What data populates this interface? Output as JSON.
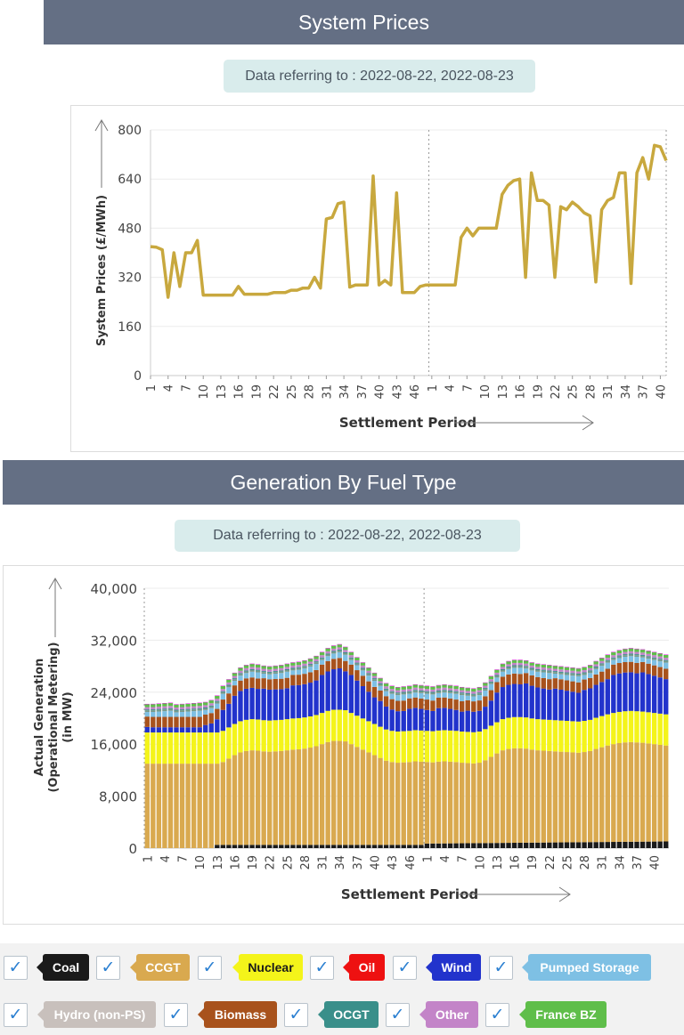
{
  "prices_section": {
    "title": "System Prices",
    "date_label": "Data referring to : 2022-08-22, 2022-08-23"
  },
  "generation_section": {
    "title": "Generation By Fuel Type",
    "date_label": "Data referring to : 2022-08-22, 2022-08-23"
  },
  "chart_data": [
    {
      "type": "line",
      "ylabel": "System Prices (£/MWh)",
      "xlabel": "Settlement Period",
      "ylim": [
        0,
        800
      ],
      "yticks": [
        0,
        160,
        320,
        480,
        640,
        800
      ],
      "ytick_labels": [
        "0",
        "160",
        "320",
        "480",
        "640",
        "800"
      ],
      "x_tick_labels": [
        "1",
        "4",
        "7",
        "10",
        "13",
        "16",
        "19",
        "22",
        "25",
        "28",
        "31",
        "34",
        "37",
        "40",
        "43",
        "46",
        "1",
        "4",
        "7",
        "10",
        "13",
        "16",
        "19",
        "22",
        "25",
        "28",
        "31",
        "34",
        "37",
        "40"
      ],
      "day_split_after_period": 48,
      "color": "#c8a83e",
      "series": [
        {
          "values": [
            420,
            418,
            410,
            255,
            400,
            290,
            400,
            400,
            440,
            262,
            262,
            262,
            262,
            262,
            262,
            290,
            265,
            265,
            265,
            265,
            265,
            270,
            270,
            270,
            278,
            278,
            285,
            285,
            320,
            285,
            510,
            515,
            560,
            565,
            288,
            295,
            295,
            295,
            650,
            295,
            310,
            295,
            595,
            270,
            270,
            270,
            290,
            295,
            295,
            295,
            295,
            295,
            295,
            450,
            480,
            455,
            480,
            480,
            480,
            480,
            590,
            620,
            635,
            640,
            320,
            660,
            570,
            570,
            555,
            320,
            550,
            540,
            565,
            550,
            530,
            520,
            305,
            540,
            570,
            580,
            660,
            660,
            300,
            660,
            710,
            640,
            750,
            745,
            700
          ]
        }
      ]
    },
    {
      "type": "bar",
      "stacked": true,
      "ylabel": "Actual Generation (Operational Metering) (in MW)",
      "xlabel": "Settlement Period",
      "ylim": [
        0,
        40000
      ],
      "yticks": [
        0,
        8000,
        16000,
        24000,
        32000,
        40000
      ],
      "ytick_labels": [
        "0",
        "8,000",
        "16,000",
        "24,000",
        "32,000",
        "40,000"
      ],
      "x_tick_labels": [
        "1",
        "4",
        "7",
        "10",
        "13",
        "16",
        "19",
        "22",
        "25",
        "28",
        "31",
        "34",
        "37",
        "40",
        "43",
        "46",
        "1",
        "4",
        "7",
        "10",
        "13",
        "16",
        "19",
        "22",
        "25",
        "28",
        "31",
        "34",
        "37",
        "40"
      ],
      "day_split_after_period": 48,
      "series_order": [
        "Coal",
        "CCGT",
        "Nuclear",
        "Wind",
        "Biomass",
        "Pumped Storage",
        "Hydro (non-PS)",
        "OCGT",
        "Other",
        "France BZ",
        "Oil"
      ]
    }
  ],
  "legend": {
    "check_mark": "✓",
    "items": [
      {
        "name": "Coal",
        "bg": "#1a1a1a",
        "fg": "#ffffff"
      },
      {
        "name": "CCGT",
        "bg": "#d9a94f",
        "fg": "#ffffff"
      },
      {
        "name": "Nuclear",
        "bg": "#f4f41a",
        "fg": "#1a1a1a"
      },
      {
        "name": "Oil",
        "bg": "#ee1111",
        "fg": "#ffffff"
      },
      {
        "name": "Wind",
        "bg": "#2233cc",
        "fg": "#ffffff"
      },
      {
        "name": "Pumped Storage",
        "bg": "#7ec0e4",
        "fg": "#ffffff"
      },
      {
        "name": "Hydro (non-PS)",
        "bg": "#c8c0bc",
        "fg": "#ffffff"
      },
      {
        "name": "Biomass",
        "bg": "#a8521c",
        "fg": "#ffffff"
      },
      {
        "name": "OCGT",
        "bg": "#3a8f8a",
        "fg": "#ffffff"
      },
      {
        "name": "Other",
        "bg": "#c384c8",
        "fg": "#ffffff"
      },
      {
        "name": "France BZ",
        "bg": "#5fbe4a",
        "fg": "#ffffff"
      }
    ]
  }
}
